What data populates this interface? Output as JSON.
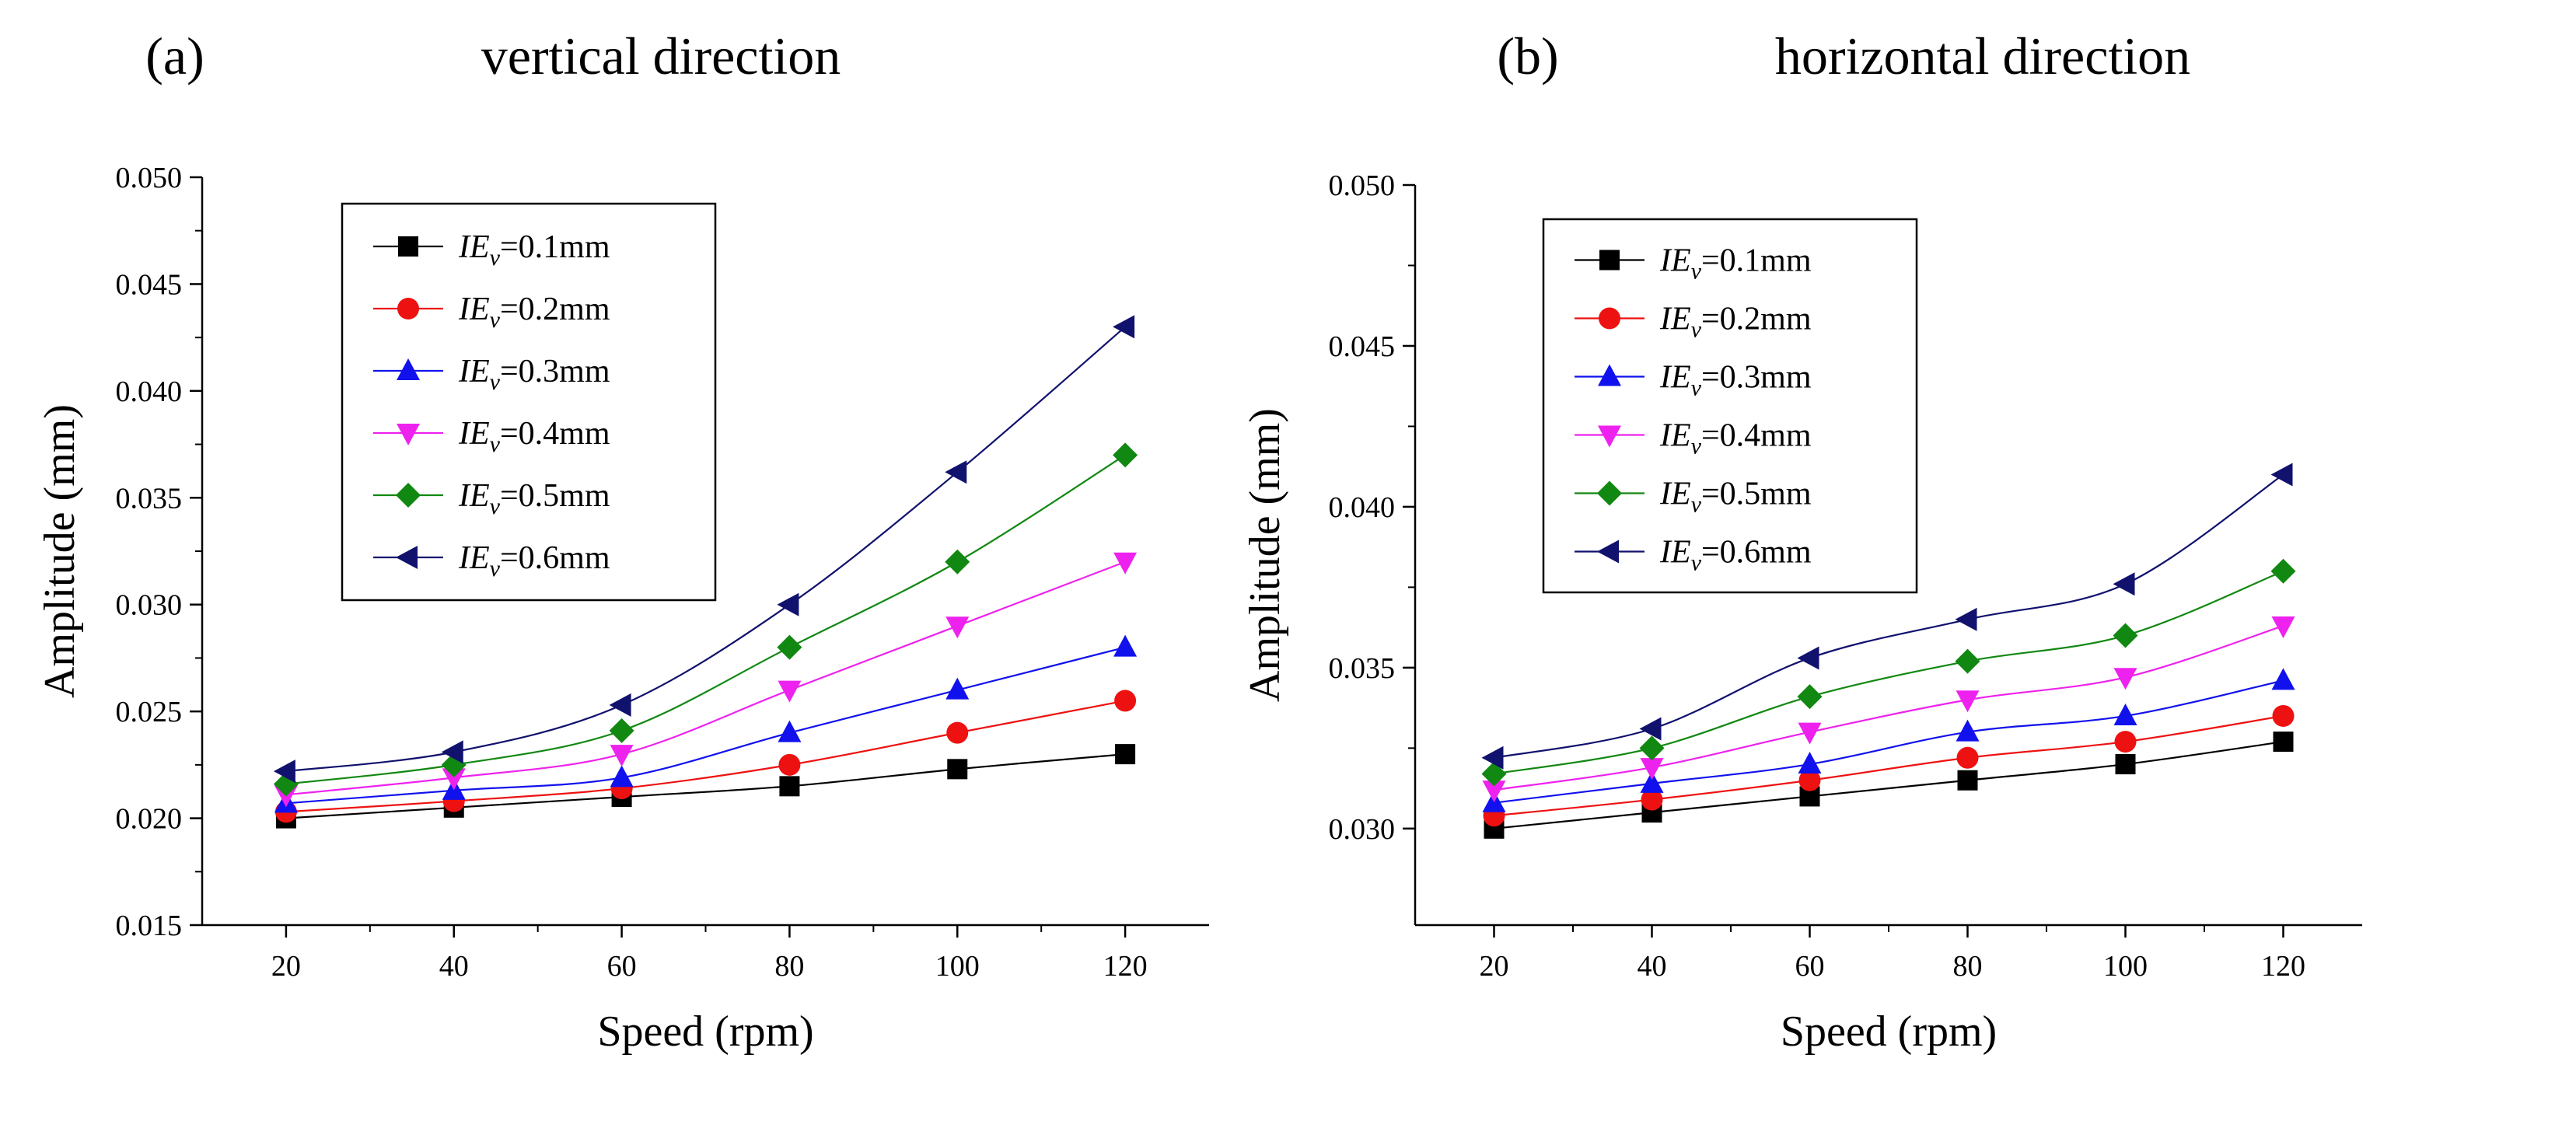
{
  "chart_data": [
    {
      "type": "line",
      "panel_tag": "(a)",
      "title": "vertical direction",
      "xlabel": "Speed (rpm)",
      "ylabel": "Amplitude (mm)",
      "xlim": [
        10,
        130
      ],
      "ylim": [
        0.015,
        0.05
      ],
      "x_ticks": [
        20,
        40,
        60,
        80,
        100,
        120
      ],
      "x_tick_labels": [
        "20",
        "40",
        "60",
        "80",
        "100",
        "120"
      ],
      "y_ticks": [
        0.015,
        0.02,
        0.025,
        0.03,
        0.035,
        0.04,
        0.045,
        0.05
      ],
      "y_tick_labels": [
        "0.015",
        "0.020",
        "0.025",
        "0.030",
        "0.035",
        "0.040",
        "0.045",
        "0.050"
      ],
      "legend_position": "top-left",
      "x": [
        20,
        40,
        60,
        80,
        100,
        120
      ],
      "series": [
        {
          "name": "IEv=0.1mm",
          "label_main": "IE",
          "label_sub": "v",
          "label_rest": "=0.1mm",
          "color": "#000000",
          "marker": "square",
          "values": [
            0.02,
            0.0205,
            0.021,
            0.0215,
            0.0223,
            0.023
          ]
        },
        {
          "name": "IEv=0.2mm",
          "label_main": "IE",
          "label_sub": "v",
          "label_rest": "=0.2mm",
          "color": "#ee1111",
          "marker": "circle",
          "values": [
            0.0203,
            0.0208,
            0.0214,
            0.0225,
            0.024,
            0.0255
          ]
        },
        {
          "name": "IEv=0.3mm",
          "label_main": "IE",
          "label_sub": "v",
          "label_rest": "=0.3mm",
          "color": "#1111ee",
          "marker": "triangle-up",
          "values": [
            0.0207,
            0.0213,
            0.0219,
            0.024,
            0.026,
            0.028
          ]
        },
        {
          "name": "IEv=0.4mm",
          "label_main": "IE",
          "label_sub": "v",
          "label_rest": "=0.4mm",
          "color": "#ee22ee",
          "marker": "triangle-down",
          "values": [
            0.0211,
            0.0219,
            0.023,
            0.026,
            0.029,
            0.032
          ]
        },
        {
          "name": "IEv=0.5mm",
          "label_main": "IE",
          "label_sub": "v",
          "label_rest": "=0.5mm",
          "color": "#118811",
          "marker": "diamond",
          "values": [
            0.0216,
            0.0225,
            0.0241,
            0.028,
            0.032,
            0.037
          ]
        },
        {
          "name": "IEv=0.6mm",
          "label_main": "IE",
          "label_sub": "v",
          "label_rest": "=0.6mm",
          "color": "#11116e",
          "marker": "triangle-left",
          "values": [
            0.0222,
            0.0231,
            0.0253,
            0.03,
            0.0362,
            0.043
          ]
        }
      ]
    },
    {
      "type": "line",
      "panel_tag": "(b)",
      "title": "horizontal direction",
      "xlabel": "Speed (rpm)",
      "ylabel": "Amplitude (mm)",
      "xlim": [
        10,
        130
      ],
      "ylim": [
        0.027,
        0.05
      ],
      "x_ticks": [
        20,
        40,
        60,
        80,
        100,
        120
      ],
      "x_tick_labels": [
        "20",
        "40",
        "60",
        "80",
        "100",
        "120"
      ],
      "y_ticks": [
        0.03,
        0.035,
        0.04,
        0.045,
        0.05
      ],
      "y_tick_labels": [
        "0.030",
        "0.035",
        "0.040",
        "0.045",
        "0.050"
      ],
      "legend_position": "top-left",
      "x": [
        20,
        40,
        60,
        80,
        100,
        120
      ],
      "series": [
        {
          "name": "IEv=0.1mm",
          "label_main": "IE",
          "label_sub": "v",
          "label_rest": "=0.1mm",
          "color": "#000000",
          "marker": "square",
          "values": [
            0.03,
            0.0305,
            0.031,
            0.0315,
            0.032,
            0.0327
          ]
        },
        {
          "name": "IEv=0.2mm",
          "label_main": "IE",
          "label_sub": "v",
          "label_rest": "=0.2mm",
          "color": "#ee1111",
          "marker": "circle",
          "values": [
            0.0304,
            0.0309,
            0.0315,
            0.0322,
            0.0327,
            0.0335
          ]
        },
        {
          "name": "IEv=0.3mm",
          "label_main": "IE",
          "label_sub": "v",
          "label_rest": "=0.3mm",
          "color": "#1111ee",
          "marker": "triangle-up",
          "values": [
            0.0308,
            0.0314,
            0.032,
            0.033,
            0.0335,
            0.0346
          ]
        },
        {
          "name": "IEv=0.4mm",
          "label_main": "IE",
          "label_sub": "v",
          "label_rest": "=0.4mm",
          "color": "#ee22ee",
          "marker": "triangle-down",
          "values": [
            0.0312,
            0.0319,
            0.033,
            0.034,
            0.0347,
            0.0363
          ]
        },
        {
          "name": "IEv=0.5mm",
          "label_main": "IE",
          "label_sub": "v",
          "label_rest": "=0.5mm",
          "color": "#118811",
          "marker": "diamond",
          "values": [
            0.0317,
            0.0325,
            0.0341,
            0.0352,
            0.036,
            0.038
          ]
        },
        {
          "name": "IEv=0.6mm",
          "label_main": "IE",
          "label_sub": "v",
          "label_rest": "=0.6mm",
          "color": "#11116e",
          "marker": "triangle-left",
          "values": [
            0.0322,
            0.0331,
            0.0353,
            0.0365,
            0.0376,
            0.041
          ]
        }
      ]
    }
  ]
}
